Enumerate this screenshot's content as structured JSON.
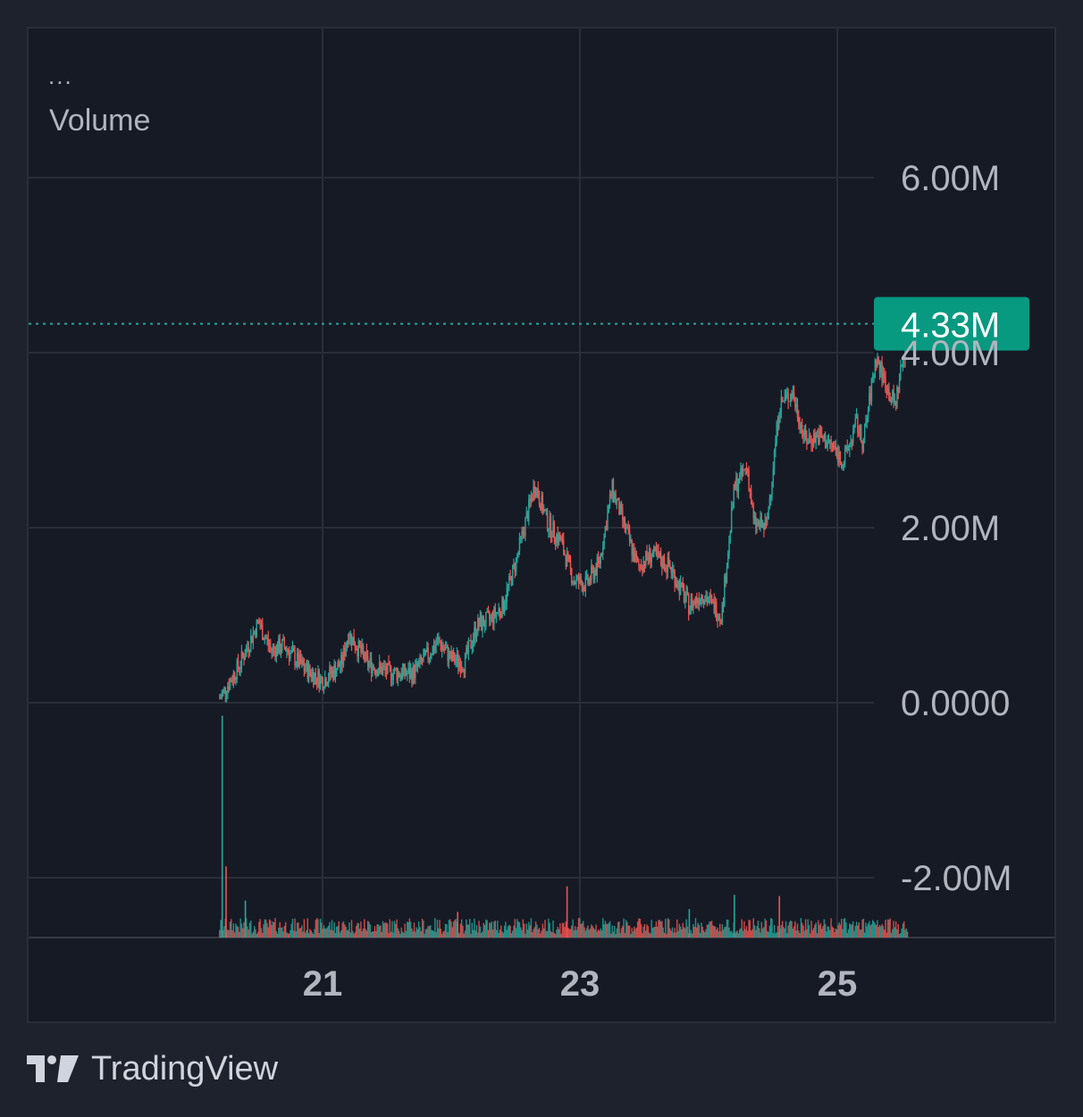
{
  "legend": {
    "dots": "...",
    "title": "Volume"
  },
  "brand": {
    "name": "TradingView",
    "logo_icon": "tradingview-logo-icon"
  },
  "colors": {
    "up": "#26a69a",
    "down": "#ef5350",
    "last_price_bg": "#089981",
    "grid": "#2a2e39",
    "text": "#b2b5be"
  },
  "chart_data": {
    "type": "candlestick",
    "title": "",
    "y_axis": {
      "ticks": [
        6000000,
        4000000,
        2000000,
        0,
        -2000000
      ],
      "tick_labels": [
        "6.00M",
        "4.00M",
        "2.00M",
        "0.0000",
        "-2.00M"
      ],
      "range": [
        -2700000,
        7600000
      ]
    },
    "x_axis": {
      "ticks": [
        21,
        23,
        25
      ],
      "tick_labels": [
        "21",
        "23",
        "25"
      ],
      "range": [
        19.12,
        26.27
      ]
    },
    "last_value": {
      "value": 4330000,
      "label": "4.33M"
    },
    "series": [
      {
        "name": "price",
        "points": [
          [
            20.2,
            0.05
          ],
          [
            20.35,
            0.42
          ],
          [
            20.5,
            0.92
          ],
          [
            20.6,
            0.6
          ],
          [
            20.7,
            0.65
          ],
          [
            20.85,
            0.4
          ],
          [
            21.0,
            0.25
          ],
          [
            21.15,
            0.45
          ],
          [
            21.2,
            0.8
          ],
          [
            21.35,
            0.45
          ],
          [
            21.5,
            0.35
          ],
          [
            21.7,
            0.33
          ],
          [
            21.82,
            0.55
          ],
          [
            21.9,
            0.7
          ],
          [
            22.0,
            0.5
          ],
          [
            22.1,
            0.45
          ],
          [
            22.2,
            0.88
          ],
          [
            22.3,
            0.95
          ],
          [
            22.4,
            1.1
          ],
          [
            22.5,
            1.6
          ],
          [
            22.65,
            2.5
          ],
          [
            22.75,
            2.05
          ],
          [
            22.85,
            1.85
          ],
          [
            22.95,
            1.4
          ],
          [
            23.05,
            1.35
          ],
          [
            23.15,
            1.6
          ],
          [
            23.25,
            2.45
          ],
          [
            23.35,
            2.0
          ],
          [
            23.45,
            1.55
          ],
          [
            23.55,
            1.7
          ],
          [
            23.7,
            1.55
          ],
          [
            23.85,
            1.1
          ],
          [
            23.95,
            1.25
          ],
          [
            24.1,
            1.0
          ],
          [
            24.2,
            2.45
          ],
          [
            24.3,
            2.7
          ],
          [
            24.35,
            2.05
          ],
          [
            24.45,
            2.0
          ],
          [
            24.55,
            3.4
          ],
          [
            24.65,
            3.55
          ],
          [
            24.75,
            3.0
          ],
          [
            24.85,
            3.05
          ],
          [
            24.95,
            2.95
          ],
          [
            25.05,
            2.75
          ],
          [
            25.15,
            3.2
          ],
          [
            25.2,
            2.95
          ],
          [
            25.3,
            3.95
          ],
          [
            25.4,
            3.55
          ],
          [
            25.45,
            3.4
          ],
          [
            25.55,
            4.3
          ]
        ]
      },
      {
        "name": "volume",
        "spikes": [
          [
            20.22,
            3.9
          ],
          [
            20.25,
            1.25
          ],
          [
            20.4,
            0.65
          ],
          [
            22.9,
            0.9
          ],
          [
            24.2,
            0.75
          ],
          [
            24.55,
            0.73
          ],
          [
            23.85,
            0.5
          ],
          [
            22.05,
            0.45
          ]
        ]
      }
    ]
  }
}
